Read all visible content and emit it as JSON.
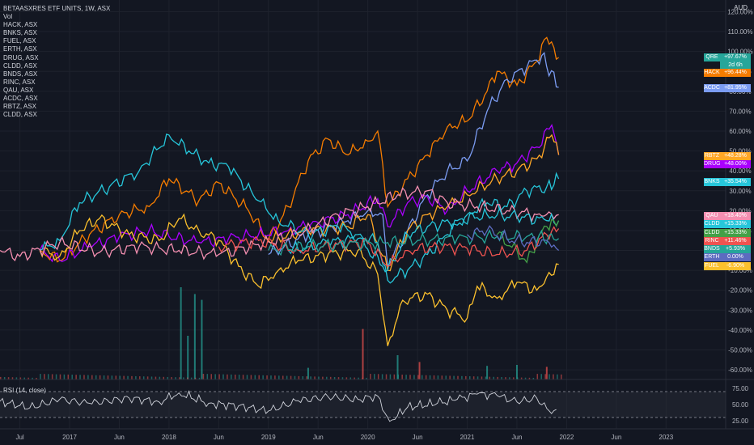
{
  "header": {
    "symbol_line": "BETAASXRES ETF UNITS, 1W, ASX",
    "vol_label": "Vol",
    "compare_list": [
      "HACK, ASX",
      "BNKS, ASX",
      "FUEL, ASX",
      "ERTH, ASX",
      "DRUG, ASX",
      "CLDD, ASX",
      "BNDS, ASX",
      "RINC, ASX",
      "QAU, ASX",
      "ACDC, ASX",
      "RBTZ, ASX",
      "CLDD, ASX"
    ],
    "currency": "AUD"
  },
  "rsi_label": "RSI (14, close)",
  "price_tags": [
    {
      "sym": "QRE",
      "pct": "+97.67%",
      "color": "#26a69a",
      "sub": "2d 6h"
    },
    {
      "sym": "HACK",
      "pct": "+96.44%",
      "color": "#f57c00"
    },
    {
      "sym": "ACDC",
      "pct": "+81.95%",
      "color": "#7b9cf2"
    },
    {
      "sym": "RBTZ",
      "pct": "+48.28%",
      "color": "#ffa726"
    },
    {
      "sym": "DRUG",
      "pct": "+48.00%",
      "color": "#aa00ff"
    },
    {
      "sym": "BNKS",
      "pct": "+35.54%",
      "color": "#26c6da"
    },
    {
      "sym": "QAU",
      "pct": "+18.40%",
      "color": "#f48fb1"
    },
    {
      "sym": "CLDD",
      "pct": "+15.33%",
      "color": "#26c6da"
    },
    {
      "sym": "CLDD",
      "pct": "+15.33%",
      "color": "#43a047"
    },
    {
      "sym": "RINC",
      "pct": "+11.46%",
      "color": "#ef5350"
    },
    {
      "sym": "BNDS",
      "pct": "+5.93%",
      "color": "#26a69a"
    },
    {
      "sym": "ERTH",
      "pct": "0.00%",
      "color": "#5c6bc0"
    },
    {
      "sym": "FUEL",
      "pct": "-6.90%",
      "color": "#fbc02d"
    }
  ],
  "chart_data": [
    {
      "type": "line",
      "title": "BETAASXRES ETF UNITS, 1W, ASX",
      "x_ticks": [
        "Jul",
        "2017",
        "Jun",
        "2018",
        "Jun",
        "2019",
        "Jun",
        "2020",
        "Jun",
        "2021",
        "Jun",
        "2022",
        "Jun",
        "2023"
      ],
      "y_ticks": [
        "120.00%",
        "110.00%",
        "100.00%",
        "90.00%",
        "80.00%",
        "70.00%",
        "60.00%",
        "50.00%",
        "40.00%",
        "30.00%",
        "20.00%",
        "10.00%",
        "0.00%",
        "-10.00%",
        "-20.00%",
        "-30.00%",
        "-40.00%",
        "-50.00%",
        "-60.00%"
      ],
      "ylim": [
        -62,
        121
      ],
      "x_range": [
        2016.3,
        2023.6
      ],
      "x_range_note": "decimal years",
      "grid": true,
      "series": [
        {
          "name": "HACK",
          "color": "#f57c00",
          "points": [
            [
              2016.7,
              0
            ],
            [
              2016.9,
              -5
            ],
            [
              2017.2,
              8
            ],
            [
              2017.5,
              18
            ],
            [
              2017.8,
              22
            ],
            [
              2018.0,
              36
            ],
            [
              2018.3,
              25
            ],
            [
              2018.5,
              34
            ],
            [
              2018.8,
              20
            ],
            [
              2019.0,
              5
            ],
            [
              2019.2,
              22
            ],
            [
              2019.4,
              45
            ],
            [
              2019.6,
              56
            ],
            [
              2019.8,
              48
            ],
            [
              2020.0,
              55
            ],
            [
              2020.1,
              60
            ],
            [
              2020.2,
              22
            ],
            [
              2020.4,
              36
            ],
            [
              2020.6,
              48
            ],
            [
              2020.8,
              62
            ],
            [
              2021.0,
              65
            ],
            [
              2021.2,
              80
            ],
            [
              2021.3,
              90
            ],
            [
              2021.5,
              83
            ],
            [
              2021.7,
              95
            ],
            [
              2021.8,
              107
            ],
            [
              2021.92,
              97
            ]
          ]
        },
        {
          "name": "ACDC",
          "color": "#7b9cf2",
          "points": [
            [
              2019.0,
              -2
            ],
            [
              2019.4,
              8
            ],
            [
              2019.8,
              15
            ],
            [
              2020.0,
              20
            ],
            [
              2020.15,
              18
            ],
            [
              2020.2,
              -8
            ],
            [
              2020.4,
              10
            ],
            [
              2020.6,
              28
            ],
            [
              2020.8,
              40
            ],
            [
              2021.0,
              45
            ],
            [
              2021.2,
              70
            ],
            [
              2021.4,
              86
            ],
            [
              2021.6,
              92
            ],
            [
              2021.75,
              98
            ],
            [
              2021.92,
              82
            ]
          ]
        },
        {
          "name": "DRUG",
          "color": "#aa00ff",
          "points": [
            [
              2016.7,
              0
            ],
            [
              2016.9,
              -5
            ],
            [
              2017.2,
              2
            ],
            [
              2017.5,
              7
            ],
            [
              2017.8,
              10
            ],
            [
              2018.0,
              7
            ],
            [
              2018.3,
              4
            ],
            [
              2018.6,
              6
            ],
            [
              2018.9,
              8
            ],
            [
              2019.2,
              10
            ],
            [
              2019.5,
              14
            ],
            [
              2019.8,
              18
            ],
            [
              2020.1,
              26
            ],
            [
              2020.2,
              12
            ],
            [
              2020.4,
              24
            ],
            [
              2020.6,
              27
            ],
            [
              2020.8,
              20
            ],
            [
              2021.0,
              30
            ],
            [
              2021.3,
              40
            ],
            [
              2021.5,
              44
            ],
            [
              2021.7,
              52
            ],
            [
              2021.85,
              63
            ],
            [
              2021.92,
              48
            ]
          ]
        },
        {
          "name": "RBTZ",
          "color": "#ffa726",
          "points": [
            [
              2019.0,
              5
            ],
            [
              2019.4,
              10
            ],
            [
              2019.8,
              12
            ],
            [
              2020.0,
              18
            ],
            [
              2020.2,
              -10
            ],
            [
              2020.4,
              10
            ],
            [
              2020.6,
              18
            ],
            [
              2020.8,
              22
            ],
            [
              2021.0,
              28
            ],
            [
              2021.3,
              36
            ],
            [
              2021.5,
              40
            ],
            [
              2021.7,
              46
            ],
            [
              2021.85,
              58
            ],
            [
              2021.92,
              48
            ]
          ]
        },
        {
          "name": "BNKS",
          "color": "#26c6da",
          "points": [
            [
              2016.7,
              0
            ],
            [
              2016.9,
              5
            ],
            [
              2017.1,
              24
            ],
            [
              2017.4,
              32
            ],
            [
              2017.7,
              40
            ],
            [
              2018.0,
              58
            ],
            [
              2018.2,
              50
            ],
            [
              2018.4,
              44
            ],
            [
              2018.6,
              42
            ],
            [
              2018.9,
              25
            ],
            [
              2019.1,
              15
            ],
            [
              2019.4,
              8
            ],
            [
              2019.7,
              12
            ],
            [
              2019.9,
              8
            ],
            [
              2020.1,
              4
            ],
            [
              2020.2,
              -15
            ],
            [
              2020.4,
              -10
            ],
            [
              2020.6,
              -2
            ],
            [
              2020.8,
              8
            ],
            [
              2021.0,
              18
            ],
            [
              2021.2,
              24
            ],
            [
              2021.4,
              22
            ],
            [
              2021.6,
              30
            ],
            [
              2021.8,
              32
            ],
            [
              2021.92,
              36
            ]
          ]
        },
        {
          "name": "FUEL",
          "color": "#fbc02d",
          "points": [
            [
              2016.7,
              0
            ],
            [
              2016.9,
              -3
            ],
            [
              2017.1,
              10
            ],
            [
              2017.3,
              16
            ],
            [
              2017.6,
              8
            ],
            [
              2017.9,
              5
            ],
            [
              2018.1,
              16
            ],
            [
              2018.3,
              10
            ],
            [
              2018.5,
              5
            ],
            [
              2018.7,
              -8
            ],
            [
              2018.9,
              -18
            ],
            [
              2019.1,
              -10
            ],
            [
              2019.3,
              -5
            ],
            [
              2019.6,
              -2
            ],
            [
              2019.9,
              0
            ],
            [
              2020.1,
              -12
            ],
            [
              2020.2,
              -48
            ],
            [
              2020.35,
              -25
            ],
            [
              2020.6,
              -22
            ],
            [
              2020.8,
              -30
            ],
            [
              2021.0,
              -34
            ],
            [
              2021.1,
              -18
            ],
            [
              2021.3,
              -24
            ],
            [
              2021.5,
              -16
            ],
            [
              2021.7,
              -20
            ],
            [
              2021.92,
              -7
            ]
          ]
        },
        {
          "name": "QAU",
          "color": "#f48fb1",
          "points": [
            [
              2016.3,
              0
            ],
            [
              2016.5,
              -3
            ],
            [
              2016.9,
              4
            ],
            [
              2017.3,
              -1
            ],
            [
              2017.7,
              2
            ],
            [
              2018.1,
              0
            ],
            [
              2018.5,
              -2
            ],
            [
              2018.9,
              3
            ],
            [
              2019.3,
              8
            ],
            [
              2019.7,
              18
            ],
            [
              2020.0,
              22
            ],
            [
              2020.3,
              28
            ],
            [
              2020.6,
              30
            ],
            [
              2020.8,
              24
            ],
            [
              2021.1,
              22
            ],
            [
              2021.4,
              20
            ],
            [
              2021.7,
              18
            ],
            [
              2021.92,
              18
            ]
          ]
        },
        {
          "name": "CLDD",
          "color": "#26c6da",
          "points": [
            [
              2019.2,
              0
            ],
            [
              2019.6,
              4
            ],
            [
              2019.9,
              6
            ],
            [
              2020.2,
              -10
            ],
            [
              2020.4,
              8
            ],
            [
              2020.6,
              12
            ],
            [
              2020.9,
              15
            ],
            [
              2021.2,
              18
            ],
            [
              2021.5,
              17
            ],
            [
              2021.8,
              15
            ],
            [
              2021.92,
              15
            ]
          ]
        },
        {
          "name": "CLDD",
          "color": "#43a047",
          "points": [
            [
              2021.3,
              8
            ],
            [
              2021.5,
              0
            ],
            [
              2021.6,
              -6
            ],
            [
              2021.7,
              5
            ],
            [
              2021.8,
              12
            ],
            [
              2021.92,
              15
            ]
          ]
        },
        {
          "name": "RINC",
          "color": "#ef5350",
          "points": [
            [
              2018.5,
              2
            ],
            [
              2018.9,
              5
            ],
            [
              2019.3,
              0
            ],
            [
              2019.7,
              3
            ],
            [
              2020.0,
              4
            ],
            [
              2020.2,
              -8
            ],
            [
              2020.4,
              0
            ],
            [
              2020.7,
              2
            ],
            [
              2021.0,
              1
            ],
            [
              2021.3,
              -2
            ],
            [
              2021.6,
              0
            ],
            [
              2021.8,
              8
            ],
            [
              2021.92,
              11
            ]
          ]
        },
        {
          "name": "BNDS",
          "color": "#26a69a",
          "points": [
            [
              2019.0,
              0
            ],
            [
              2019.4,
              2
            ],
            [
              2019.8,
              3
            ],
            [
              2020.2,
              4
            ],
            [
              2020.5,
              5
            ],
            [
              2020.9,
              6
            ],
            [
              2021.3,
              7
            ],
            [
              2021.6,
              7
            ],
            [
              2021.92,
              6
            ]
          ]
        },
        {
          "name": "ERTH",
          "color": "#5c6bc0",
          "points": [
            [
              2021.0,
              8
            ],
            [
              2021.2,
              10
            ],
            [
              2021.4,
              6
            ],
            [
              2021.6,
              4
            ],
            [
              2021.8,
              5
            ],
            [
              2021.92,
              0
            ]
          ]
        }
      ]
    },
    {
      "type": "bar",
      "title": "Vol",
      "bars": [
        {
          "x": 2018.12,
          "rel": 0.95,
          "color": "#26a69a"
        },
        {
          "x": 2018.19,
          "rel": 0.45,
          "color": "#26a69a"
        },
        {
          "x": 2018.26,
          "rel": 0.88,
          "color": "#26a69a"
        },
        {
          "x": 2018.33,
          "rel": 0.82,
          "color": "#26a69a"
        },
        {
          "x": 2019.95,
          "rel": 0.52,
          "color": "#ef5350"
        },
        {
          "x": 2019.4,
          "rel": 0.12,
          "color": "#26a69a"
        },
        {
          "x": 2020.3,
          "rel": 0.25,
          "color": "#26a69a"
        },
        {
          "x": 2020.52,
          "rel": 0.18,
          "color": "#ef5350"
        },
        {
          "x": 2021.2,
          "rel": 0.14,
          "color": "#26a69a"
        },
        {
          "x": 2021.5,
          "rel": 0.15,
          "color": "#26a69a"
        },
        {
          "x": 2021.8,
          "rel": 0.13,
          "color": "#ef5350"
        }
      ]
    },
    {
      "type": "line",
      "title": "RSI (14, close)",
      "y_ticks": [
        "75.00",
        "50.00",
        "25.00"
      ],
      "ylim": [
        15,
        85
      ],
      "bands": [
        30,
        70
      ],
      "points": [
        [
          2016.3,
          55
        ],
        [
          2016.6,
          45
        ],
        [
          2016.9,
          58
        ],
        [
          2017.2,
          52
        ],
        [
          2017.6,
          60
        ],
        [
          2017.9,
          54
        ],
        [
          2018.1,
          68
        ],
        [
          2018.4,
          52
        ],
        [
          2018.7,
          48
        ],
        [
          2019.0,
          40
        ],
        [
          2019.3,
          56
        ],
        [
          2019.6,
          62
        ],
        [
          2019.9,
          58
        ],
        [
          2020.1,
          63
        ],
        [
          2020.22,
          24
        ],
        [
          2020.4,
          46
        ],
        [
          2020.7,
          52
        ],
        [
          2020.9,
          58
        ],
        [
          2021.1,
          66
        ],
        [
          2021.3,
          64
        ],
        [
          2021.5,
          54
        ],
        [
          2021.7,
          60
        ],
        [
          2021.8,
          44
        ],
        [
          2021.92,
          38
        ]
      ]
    }
  ]
}
